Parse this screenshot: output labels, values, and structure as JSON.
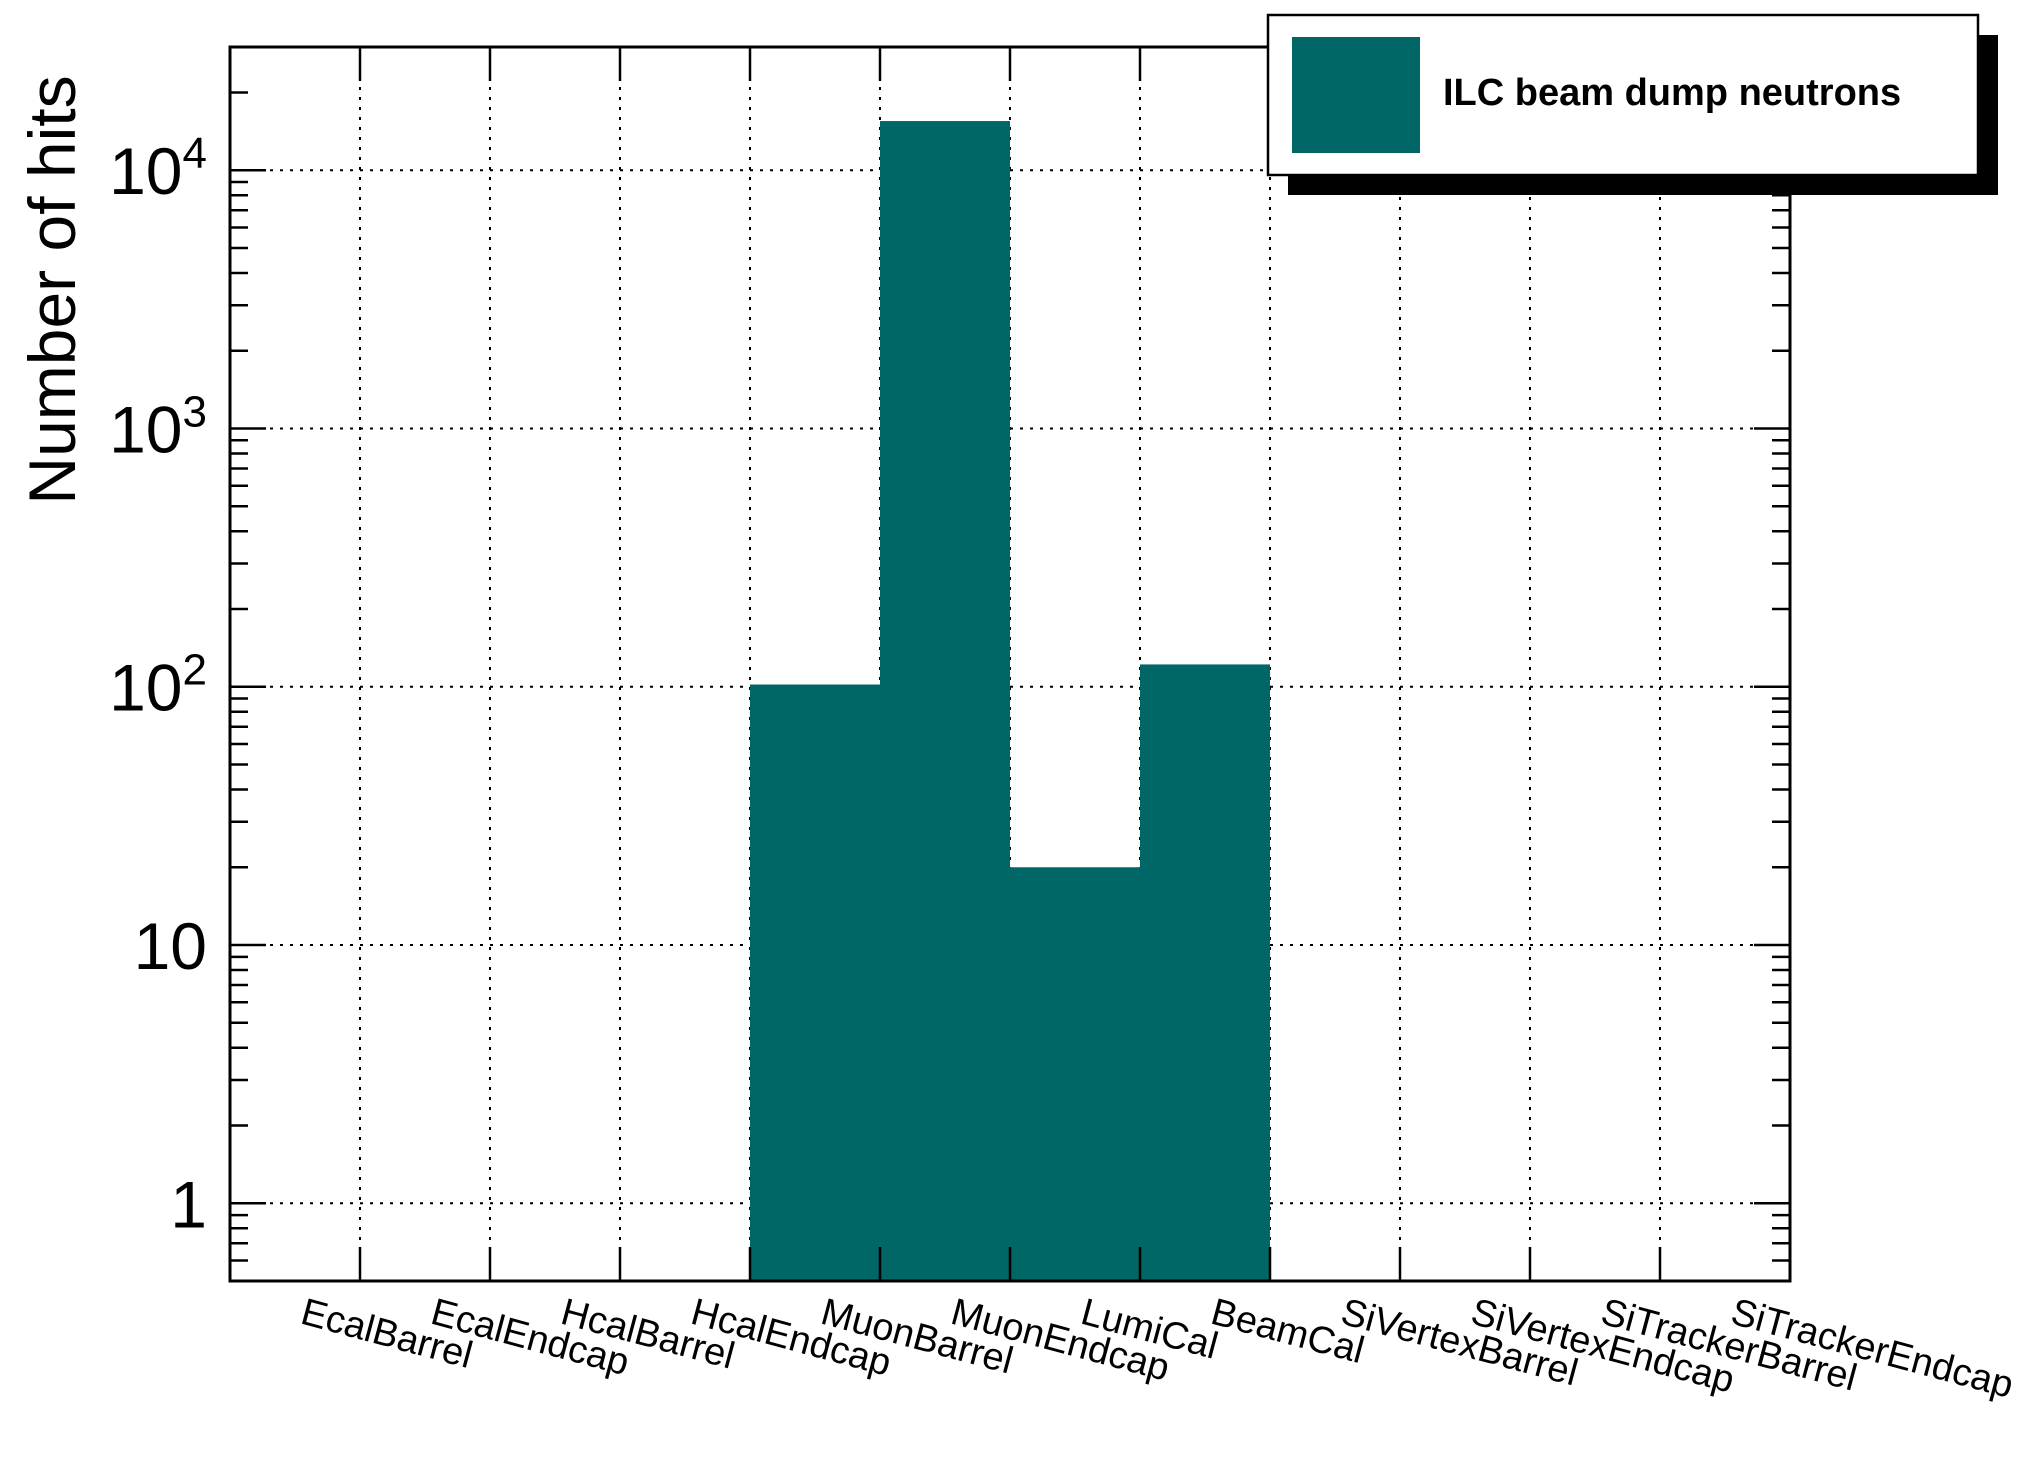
{
  "chart_data": {
    "type": "bar",
    "title": "",
    "xlabel": "",
    "ylabel": "Number of hits",
    "yscale": "log",
    "ylim": [
      0.5,
      30000
    ],
    "grid": true,
    "categories": [
      "EcalBarrel",
      "EcalEndcap",
      "HcalBarrel",
      "HcalEndcap",
      "MuonBarrel",
      "MuonEndcap",
      "LumiCal",
      "BeamCal",
      "SiVertexBarrel",
      "SiVertexEndcap",
      "SiTrackerBarrel",
      "SiTrackerEndcap"
    ],
    "series": [
      {
        "name": "ILC beam dump neutrons",
        "color": "#006666",
        "values": [
          0,
          0,
          0,
          0,
          102,
          15500,
          20,
          122,
          0,
          0,
          0,
          0
        ]
      }
    ],
    "yticks": [
      {
        "value": 1,
        "base": "1",
        "exp": ""
      },
      {
        "value": 10,
        "base": "10",
        "exp": ""
      },
      {
        "value": 100,
        "base": "10",
        "exp": "2"
      },
      {
        "value": 1000,
        "base": "10",
        "exp": "3"
      },
      {
        "value": 10000,
        "base": "10",
        "exp": "4"
      }
    ],
    "legend": {
      "position": "top-right",
      "entries": [
        "ILC beam dump neutrons"
      ]
    }
  }
}
